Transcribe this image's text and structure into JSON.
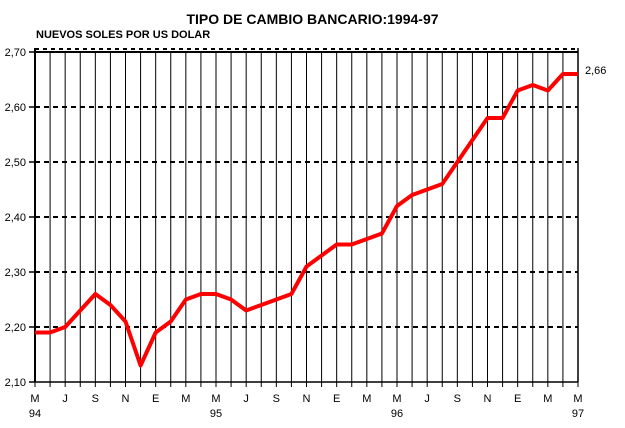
{
  "chart": {
    "title": "TIPO DE CAMBIO BANCARIO:1994-97",
    "subtitle": "NUEVOS SOLES POR US DOLAR"
  },
  "chart_data": {
    "type": "line",
    "title": "TIPO DE CAMBIO BANCARIO:1994-97",
    "ylabel": "NUEVOS SOLES POR US DOLAR",
    "xlabel": "",
    "ylim": [
      2.1,
      2.7
    ],
    "ytick_step": 0.1,
    "ytick_labels_top_down": [
      "2,70",
      "2,60",
      "2,50",
      "2,40",
      "2,30",
      "2,20",
      "2,10"
    ],
    "x_tick_labels": [
      "M",
      "J",
      "S",
      "N",
      "E",
      "M",
      "M",
      "J",
      "S",
      "N",
      "E",
      "M",
      "M",
      "J",
      "S",
      "N",
      "E",
      "M",
      "M"
    ],
    "x_tick_every_n_months": 2,
    "year_labels": [
      {
        "label": "94",
        "tick": 0
      },
      {
        "label": "95",
        "tick": 6
      },
      {
        "label": "96",
        "tick": 12
      },
      {
        "label": "97",
        "tick": 18
      }
    ],
    "series": [
      {
        "name": "Tipo de cambio bancario (nuevos soles por US dolar)",
        "color": "#ff0000",
        "values": [
          2.19,
          2.19,
          2.2,
          2.23,
          2.26,
          2.24,
          2.21,
          2.13,
          2.19,
          2.21,
          2.25,
          2.26,
          2.26,
          2.25,
          2.23,
          2.24,
          2.25,
          2.26,
          2.31,
          2.33,
          2.35,
          2.35,
          2.36,
          2.37,
          2.42,
          2.44,
          2.45,
          2.46,
          2.5,
          2.54,
          2.58,
          2.58,
          2.63,
          2.64,
          2.63,
          2.66,
          2.66
        ]
      }
    ],
    "end_label": "2,66",
    "grid": {
      "vertical": "solid, every month",
      "horizontal": "dashed, every 0.10"
    },
    "legend": "none",
    "colors": {
      "line": "#ff0000",
      "axis": "#000000",
      "background": "#ffffff"
    }
  }
}
